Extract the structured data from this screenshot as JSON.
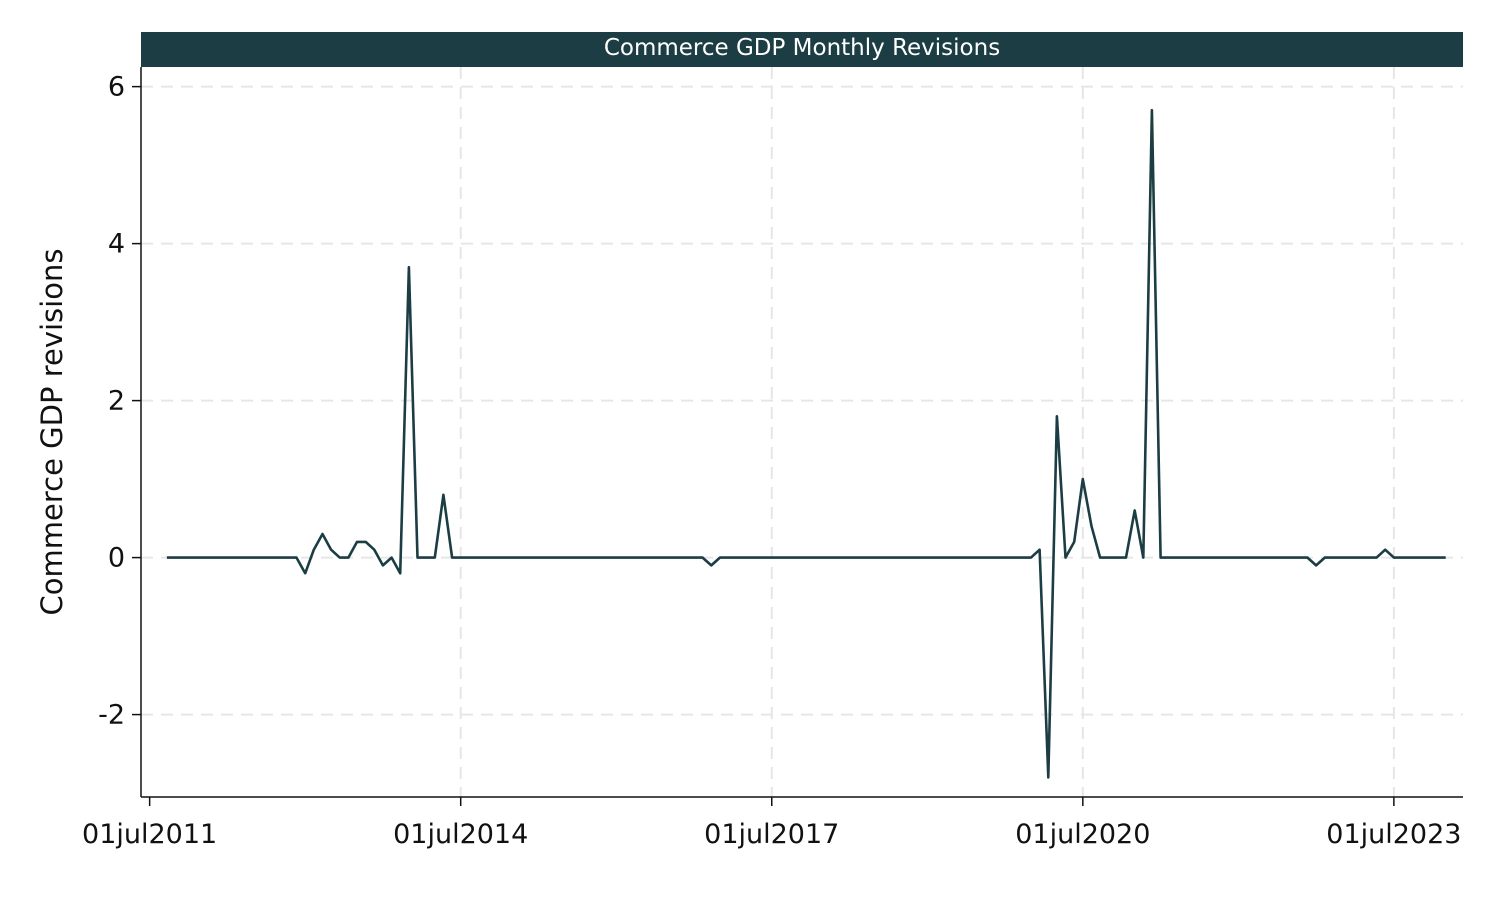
{
  "chart_data": {
    "type": "line",
    "title": "Commerce GDP Monthly Revisions",
    "ylabel": "Commerce GDP revisions",
    "xlabel": "",
    "x_ticks": [
      "01jul2011",
      "01jul2014",
      "01jul2017",
      "01jul2020",
      "01jul2023"
    ],
    "y_ticks": [
      "-2",
      "0",
      "2",
      "4",
      "6"
    ],
    "xlim": [
      "2011-06",
      "2024-03"
    ],
    "ylim": [
      -3.05,
      6.25
    ],
    "grid": true,
    "colors": {
      "line": "#1c3d44",
      "title_bar": "#1c3d44",
      "grid": "#e6e6e6"
    },
    "series": [
      {
        "points": [
          [
            "2011-09",
            0
          ],
          [
            "2012-09",
            0
          ],
          [
            "2012-12",
            0
          ],
          [
            "2013-01",
            -0.2
          ],
          [
            "2013-02",
            0.1
          ],
          [
            "2013-03",
            0.3
          ],
          [
            "2013-04",
            0.1
          ],
          [
            "2013-05",
            0
          ],
          [
            "2013-06",
            0
          ],
          [
            "2013-07",
            0.2
          ],
          [
            "2013-08",
            0.2
          ],
          [
            "2013-09",
            0.1
          ],
          [
            "2013-10",
            -0.1
          ],
          [
            "2013-11",
            0
          ],
          [
            "2013-12",
            -0.2
          ],
          [
            "2014-01",
            3.7
          ],
          [
            "2014-02",
            0
          ],
          [
            "2014-03",
            0
          ],
          [
            "2014-04",
            0
          ],
          [
            "2014-05",
            0.8
          ],
          [
            "2014-06",
            0
          ],
          [
            "2016-11",
            0
          ],
          [
            "2016-12",
            -0.1
          ],
          [
            "2017-01",
            0
          ],
          [
            "2019-11",
            0
          ],
          [
            "2020-01",
            0
          ],
          [
            "2020-02",
            0.1
          ],
          [
            "2020-03",
            -2.8
          ],
          [
            "2020-04",
            1.8
          ],
          [
            "2020-05",
            0
          ],
          [
            "2020-06",
            0.2
          ],
          [
            "2020-07",
            1.0
          ],
          [
            "2020-08",
            0.4
          ],
          [
            "2020-09",
            0
          ],
          [
            "2020-10",
            0
          ],
          [
            "2020-11",
            0
          ],
          [
            "2020-12",
            0
          ],
          [
            "2021-01",
            0.6
          ],
          [
            "2021-02",
            0
          ],
          [
            "2021-03",
            5.7
          ],
          [
            "2021-04",
            0
          ],
          [
            "2022-08",
            0
          ],
          [
            "2022-09",
            0
          ],
          [
            "2022-10",
            -0.1
          ],
          [
            "2022-11",
            0
          ],
          [
            "2023-05",
            0
          ],
          [
            "2023-06",
            0.1
          ],
          [
            "2023-07",
            0
          ],
          [
            "2024-01",
            0
          ]
        ]
      }
    ]
  }
}
